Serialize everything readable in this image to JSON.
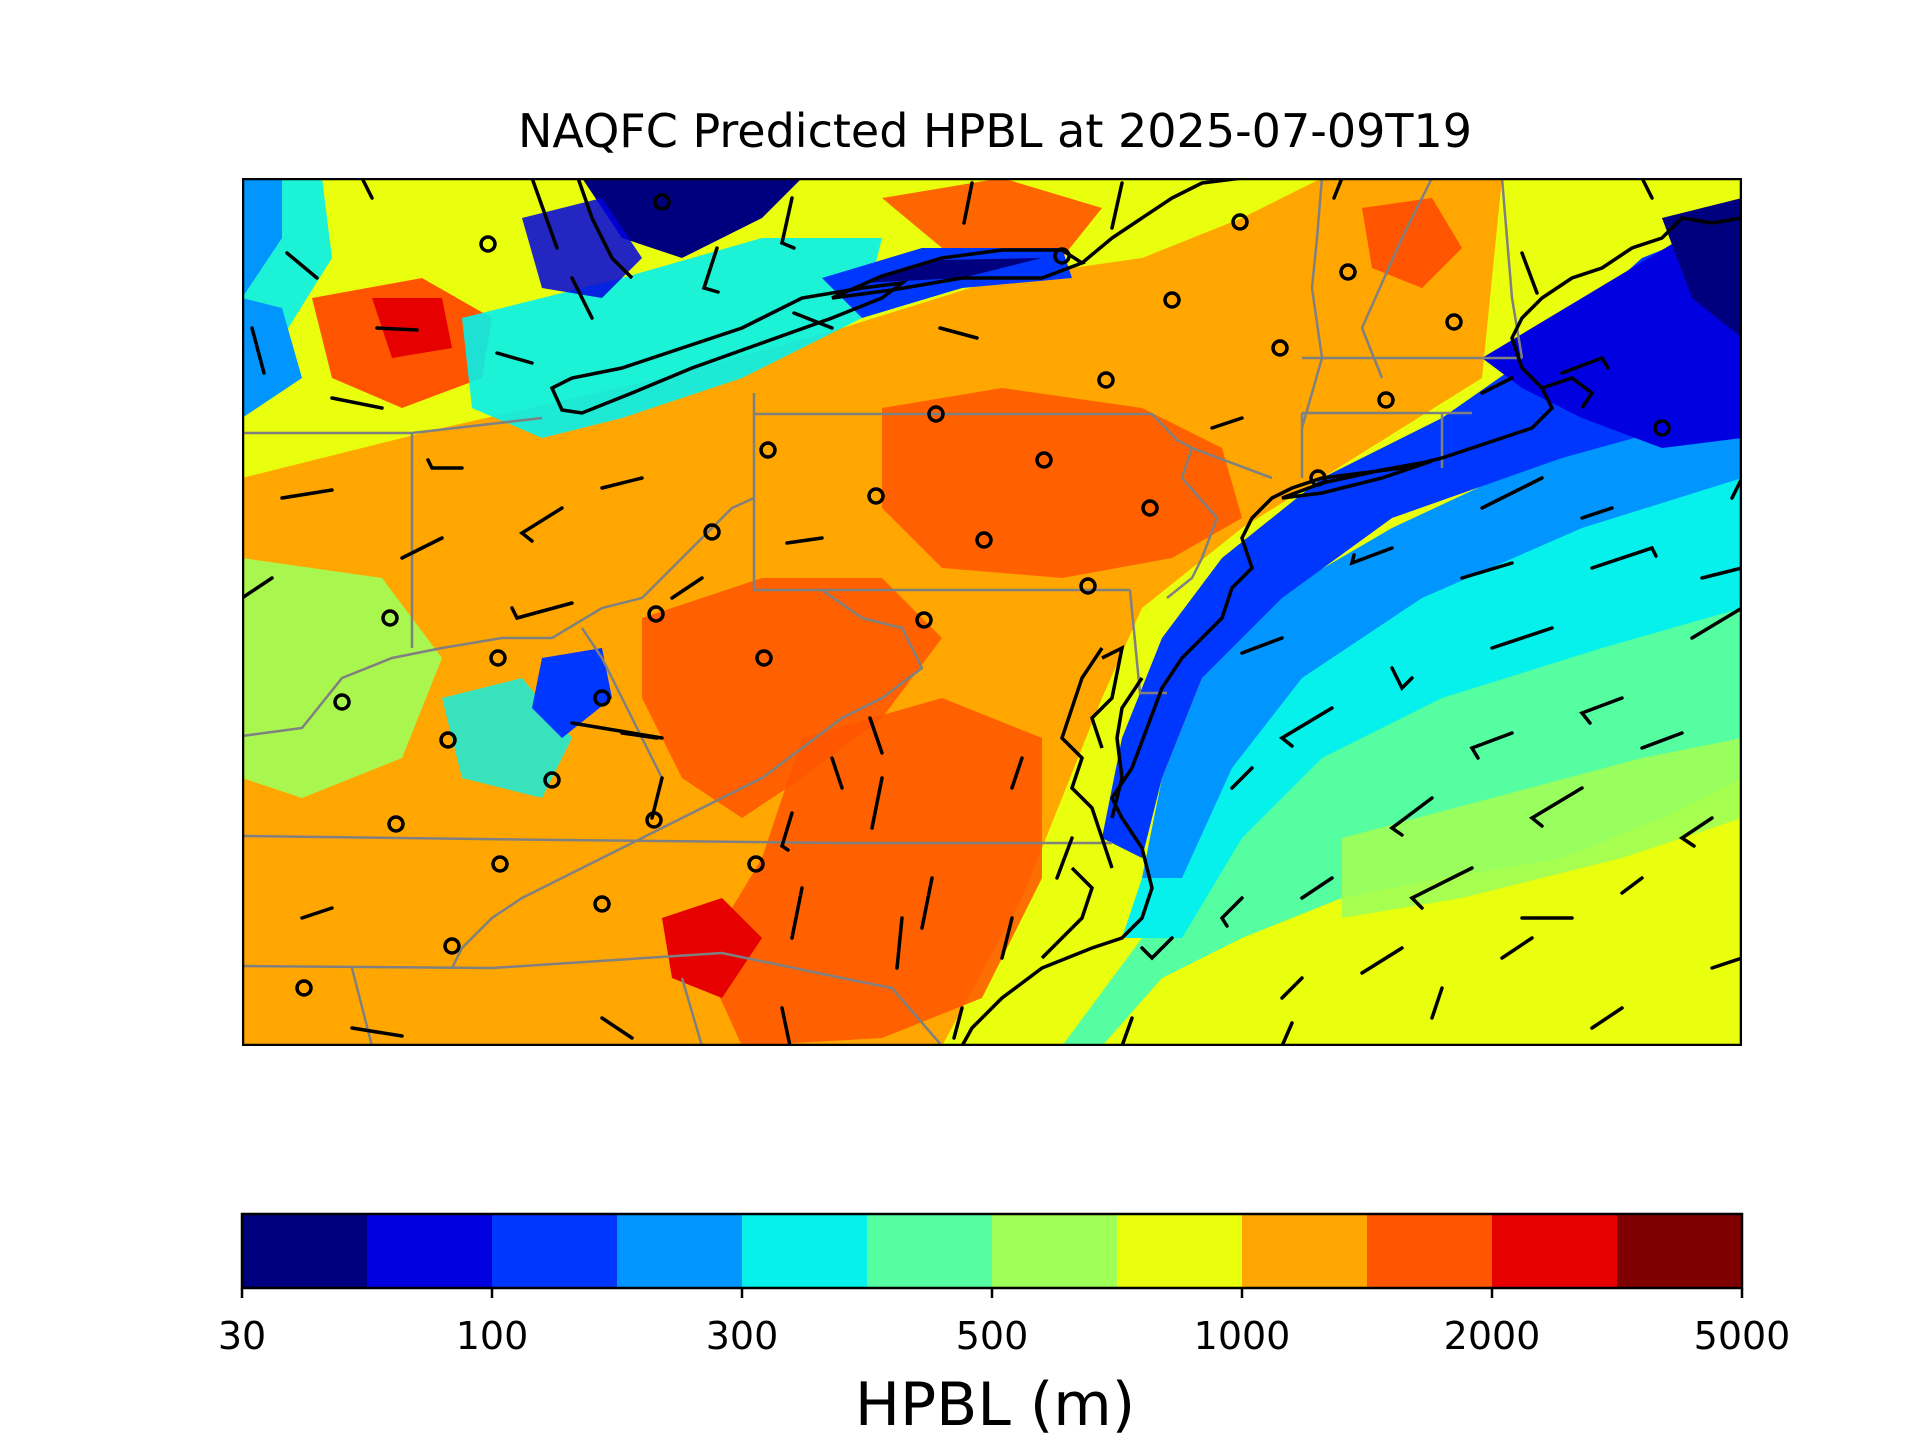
{
  "title": "NAQFC Predicted HPBL at 2025-07-09T19",
  "colorbar": {
    "label": "HPBL (m)",
    "tick_labels": [
      "30",
      "100",
      "300",
      "500",
      "1000",
      "2000",
      "5000"
    ],
    "tick_bin_index": [
      0,
      2,
      4,
      6,
      8,
      10,
      12
    ],
    "bin_edges": [
      30,
      50,
      100,
      200,
      300,
      400,
      500,
      700,
      1000,
      1500,
      2000,
      3000,
      5000
    ],
    "colors": [
      "#00007f",
      "#0000e0",
      "#0037ff",
      "#0095ff",
      "#06f1eb",
      "#55ffa1",
      "#a0ff56",
      "#e9ff0d",
      "#ffa700",
      "#ff5500",
      "#e70000",
      "#7f0000"
    ]
  },
  "colors": {
    "state_border": "#808080",
    "coastline": "#000000",
    "station_marker": "#000000"
  },
  "map": {
    "region": "Northeastern United States and western Atlantic",
    "field": "HPBL"
  }
}
